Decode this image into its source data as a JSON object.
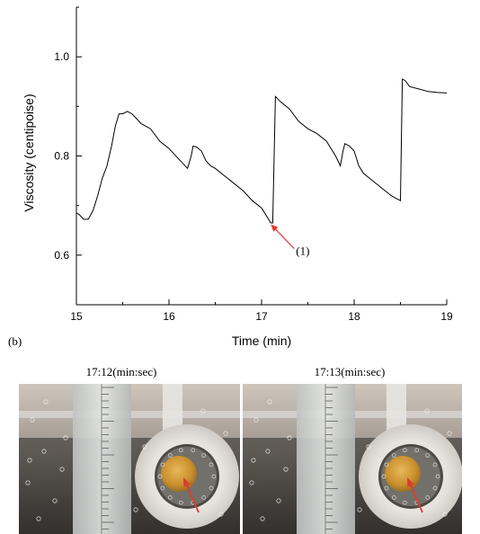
{
  "panel_label": "(b)",
  "chart_data": {
    "type": "line",
    "xlabel": "Time (min)",
    "ylabel": "Viscosity (centipoise)",
    "xlim": [
      15,
      19
    ],
    "ylim": [
      0.5,
      1.1
    ],
    "xticks": [
      15,
      16,
      17,
      18,
      19
    ],
    "yticks": [
      0.6,
      0.8,
      1.0
    ],
    "xtick_labels": [
      "15",
      "16",
      "17",
      "18",
      "19"
    ],
    "ytick_labels": [
      "0.6",
      "0.8",
      "1.0"
    ],
    "grid": false,
    "series": [
      {
        "color": "#000000",
        "x": [
          15.0,
          15.03,
          15.08,
          15.13,
          15.18,
          15.23,
          15.28,
          15.33,
          15.38,
          15.42,
          15.46,
          15.5,
          15.55,
          15.6,
          15.65,
          15.7,
          15.8,
          15.9,
          16.0,
          16.1,
          16.2,
          16.24,
          16.26,
          16.3,
          16.35,
          16.4,
          16.45,
          16.5,
          16.6,
          16.7,
          16.8,
          16.9,
          17.0,
          17.05,
          17.1,
          17.12,
          17.15,
          17.2,
          17.3,
          17.4,
          17.5,
          17.6,
          17.7,
          17.8,
          17.85,
          17.88,
          17.9,
          17.95,
          18.0,
          18.05,
          18.1,
          18.2,
          18.3,
          18.4,
          18.45,
          18.5,
          18.52,
          18.55,
          18.6,
          18.7,
          18.8,
          18.9,
          19.0
        ],
        "y": [
          0.685,
          0.682,
          0.672,
          0.673,
          0.69,
          0.72,
          0.755,
          0.78,
          0.82,
          0.86,
          0.885,
          0.885,
          0.89,
          0.885,
          0.875,
          0.865,
          0.855,
          0.83,
          0.815,
          0.795,
          0.775,
          0.8,
          0.82,
          0.818,
          0.81,
          0.79,
          0.78,
          0.775,
          0.76,
          0.745,
          0.73,
          0.71,
          0.695,
          0.68,
          0.665,
          0.665,
          0.92,
          0.91,
          0.895,
          0.87,
          0.855,
          0.845,
          0.83,
          0.8,
          0.78,
          0.81,
          0.825,
          0.82,
          0.81,
          0.78,
          0.765,
          0.75,
          0.735,
          0.72,
          0.715,
          0.71,
          0.955,
          0.952,
          0.94,
          0.935,
          0.93,
          0.928,
          0.927
        ]
      }
    ],
    "annotations": [
      {
        "text": "(1)",
        "x": 17.09,
        "y": 0.664,
        "color": "#e03a2f"
      }
    ]
  },
  "frames": [
    {
      "timestamp": "17:12(min:sec)",
      "arrow_color": "#e03a2f"
    },
    {
      "timestamp": "17:13(min:sec)",
      "arrow_color": "#e03a2f"
    }
  ]
}
